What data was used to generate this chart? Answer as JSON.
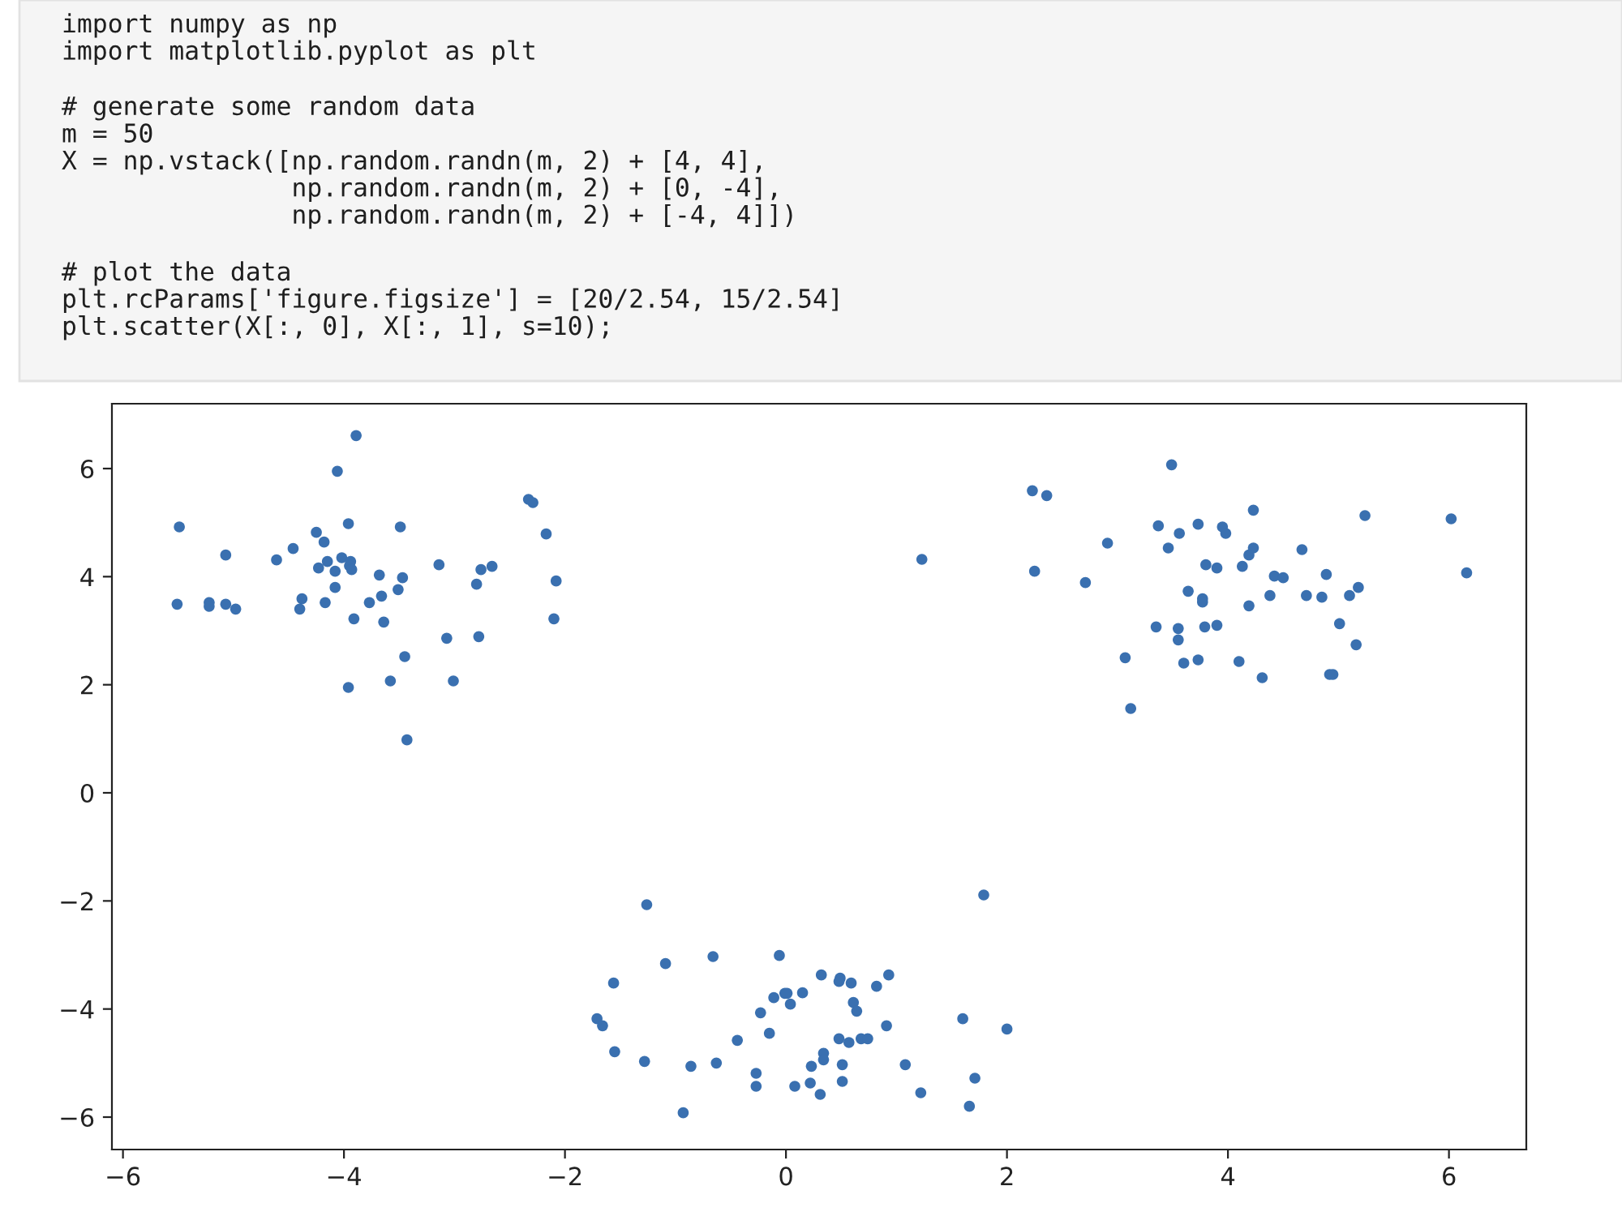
{
  "chart_data": {
    "type": "scatter",
    "annotations": [
      "import numpy as np\nimport matplotlib.pyplot as plt",
      "# generate some random data\nm = 50\nX = np.vstack([np.random.randn(m, 2) + [4, 4],\n               np.random.randn(m, 2) + [0, -4],\n               np.random.randn(m, 2) + [-4, 4]])",
      "# plot the data\nplt.rcParams['figure.figsize'] = [20/2.54, 15/2.54]\nplt.scatter(X[:, 0], X[:, 1], s=10);"
    ],
    "series": [
      {
        "color": "#3a70b0",
        "x": [
          -3.89,
          -4.06,
          -2.33,
          -2.29,
          -5.49,
          -3.96,
          -3.49,
          -2.17,
          -4.25,
          -4.18,
          -5.07,
          -4.46,
          -4.61,
          -4.15,
          -4.02,
          -3.94,
          -4.23,
          -4.08,
          -3.95,
          -3.93,
          -3.14,
          -3.68,
          -3.47,
          -2.76,
          -2.66,
          -2.08,
          -2.8,
          -4.08,
          -3.51,
          -3.66,
          -4.38,
          -3.77,
          -4.17,
          -5.51,
          -5.22,
          -5.22,
          -5.07,
          -4.98,
          -4.4,
          -3.91,
          -3.64,
          -2.1,
          -3.07,
          -2.78,
          -3.45,
          -3.96,
          -3.58,
          -3.01,
          -3.43,
          1.23,
          3.49,
          2.23,
          2.36,
          4.23,
          5.24,
          6.02,
          3.37,
          3.73,
          3.95,
          3.98,
          3.56,
          2.91,
          3.46,
          4.23,
          4.19,
          4.67,
          2.25,
          3.8,
          3.9,
          4.13,
          2.71,
          4.42,
          4.5,
          4.89,
          6.16,
          5.18,
          3.64,
          3.77,
          3.77,
          4.38,
          4.71,
          4.85,
          5.1,
          4.19,
          3.35,
          3.55,
          3.79,
          3.9,
          5.01,
          3.55,
          5.16,
          3.07,
          3.6,
          3.73,
          4.1,
          4.31,
          4.92,
          4.95,
          3.12,
          1.79,
          -1.26,
          -0.66,
          -0.06,
          -1.09,
          -1.56,
          0.32,
          0.49,
          0.48,
          0.59,
          0.93,
          0.82,
          -0.01,
          0.01,
          0.15,
          -0.11,
          0.04,
          0.61,
          0.64,
          -0.23,
          -1.71,
          -1.66,
          -0.15,
          0.91,
          1.6,
          2.0,
          -0.44,
          0.48,
          0.57,
          0.68,
          0.74,
          -1.55,
          0.34,
          0.34,
          -1.28,
          -0.63,
          -0.86,
          0.23,
          0.51,
          1.08,
          -0.27,
          -0.27,
          0.08,
          0.22,
          0.51,
          0.31,
          1.22,
          1.71,
          1.66,
          -0.93
        ],
        "values": [
          6.61,
          5.95,
          5.43,
          5.37,
          4.92,
          4.98,
          4.92,
          4.79,
          4.82,
          4.64,
          4.4,
          4.52,
          4.31,
          4.28,
          4.35,
          4.28,
          4.16,
          4.1,
          4.2,
          4.13,
          4.22,
          4.03,
          3.98,
          4.13,
          4.19,
          3.92,
          3.86,
          3.8,
          3.76,
          3.64,
          3.59,
          3.52,
          3.52,
          3.49,
          3.52,
          3.45,
          3.49,
          3.4,
          3.4,
          3.22,
          3.16,
          3.22,
          2.86,
          2.89,
          2.52,
          1.95,
          2.07,
          2.07,
          0.98,
          4.32,
          6.07,
          5.59,
          5.5,
          5.23,
          5.13,
          5.07,
          4.94,
          4.97,
          4.92,
          4.8,
          4.8,
          4.62,
          4.53,
          4.53,
          4.4,
          4.5,
          4.1,
          4.22,
          4.16,
          4.19,
          3.89,
          4.01,
          3.98,
          4.04,
          4.07,
          3.8,
          3.73,
          3.59,
          3.53,
          3.65,
          3.65,
          3.62,
          3.65,
          3.46,
          3.07,
          3.04,
          3.07,
          3.1,
          3.13,
          2.83,
          2.74,
          2.5,
          2.4,
          2.46,
          2.43,
          2.13,
          2.19,
          2.19,
          1.56,
          -1.89,
          -2.07,
          -3.03,
          -3.01,
          -3.16,
          -3.52,
          -3.37,
          -3.43,
          -3.49,
          -3.52,
          -3.37,
          -3.58,
          -3.71,
          -3.71,
          -3.7,
          -3.79,
          -3.91,
          -3.88,
          -4.04,
          -4.07,
          -4.18,
          -4.31,
          -4.45,
          -4.31,
          -4.18,
          -4.37,
          -4.58,
          -4.55,
          -4.62,
          -4.55,
          -4.55,
          -4.79,
          -4.82,
          -4.94,
          -4.97,
          -5.0,
          -5.06,
          -5.06,
          -5.03,
          -5.03,
          -5.19,
          -5.43,
          -5.43,
          -5.37,
          -5.34,
          -5.58,
          -5.55,
          -5.28,
          -5.8,
          -5.92
        ]
      }
    ],
    "marker": "circle",
    "xlim": [
      -6.1,
      6.7
    ],
    "ylim": [
      -6.6,
      7.2
    ],
    "xticks": [
      {
        "value": -6,
        "label": "−6"
      },
      {
        "value": -4,
        "label": "−4"
      },
      {
        "value": -2,
        "label": "−2"
      },
      0,
      2,
      4,
      6
    ],
    "yticks": [
      {
        "value": -6,
        "label": "−6"
      },
      {
        "value": -4,
        "label": "−4"
      },
      {
        "value": -2,
        "label": "−2"
      },
      0,
      2,
      4,
      6
    ]
  }
}
